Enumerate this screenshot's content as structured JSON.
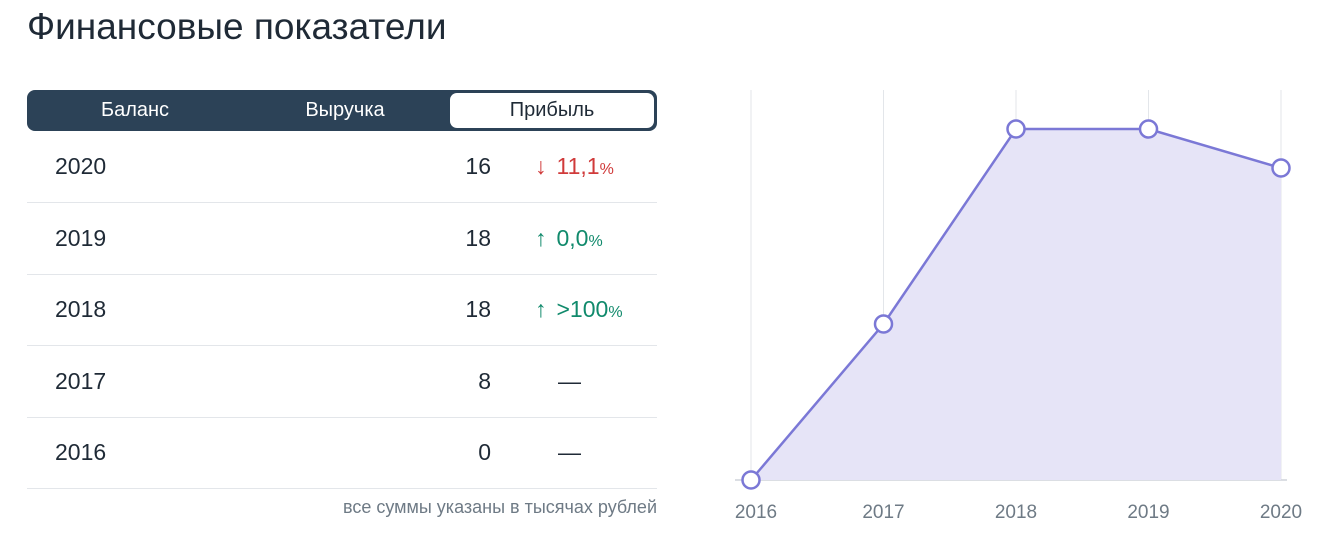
{
  "header": {
    "title": "Финансовые показатели"
  },
  "tabs": [
    {
      "label": "Баланс",
      "active": false
    },
    {
      "label": "Выручка",
      "active": false
    },
    {
      "label": "Прибыль",
      "active": true
    }
  ],
  "table": {
    "rows": [
      {
        "year": "2020",
        "value": "16",
        "change": {
          "direction": "down",
          "text": "11,1",
          "unit": "%"
        }
      },
      {
        "year": "2019",
        "value": "18",
        "change": {
          "direction": "up",
          "text": "0,0",
          "unit": "%"
        }
      },
      {
        "year": "2018",
        "value": "18",
        "change": {
          "direction": "up",
          "text": ">100",
          "unit": "%"
        }
      },
      {
        "year": "2017",
        "value": "8",
        "change": {
          "text": "—"
        }
      },
      {
        "year": "2016",
        "value": "0",
        "change": {
          "text": "—"
        }
      }
    ]
  },
  "note": "все суммы указаны в тысячах рублей",
  "chart_data": {
    "type": "area",
    "x": [
      "2016",
      "2017",
      "2018",
      "2019",
      "2020"
    ],
    "values": [
      0,
      8,
      18,
      18,
      16
    ],
    "ylim": [
      0,
      20
    ],
    "color": "#7b78d6",
    "fill": "#e6e4f7",
    "grid": true
  }
}
